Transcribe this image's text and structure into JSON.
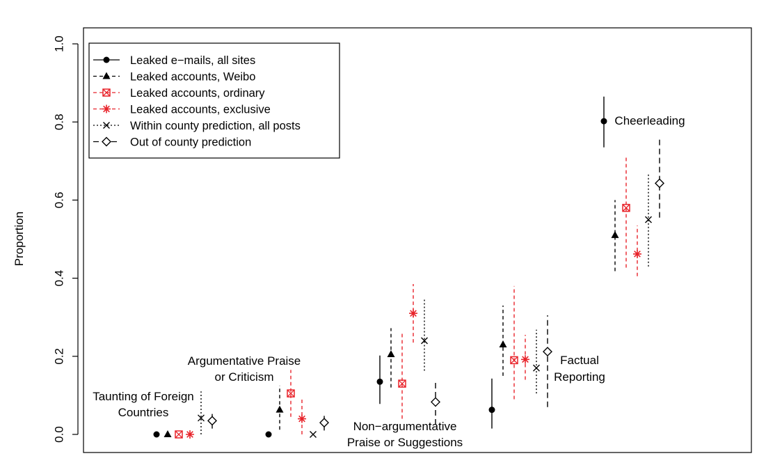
{
  "chart_data": {
    "type": "scatter",
    "ylabel": "Proportion",
    "xlabel": "",
    "ylim": [
      0.0,
      1.0
    ],
    "yticks": [
      "0.0",
      "0.2",
      "0.4",
      "0.6",
      "0.8",
      "1.0"
    ],
    "grid": false,
    "legend_position": "top-left",
    "categories": [
      {
        "id": "taunting",
        "label_lines": [
          "Taunting of Foreign",
          "Countries"
        ]
      },
      {
        "id": "argumentative",
        "label_lines": [
          "Argumentative Praise",
          "or Criticism"
        ]
      },
      {
        "id": "nonargumentative",
        "label_lines": [
          "Non−argumentative",
          "Praise or Suggestions"
        ]
      },
      {
        "id": "factual",
        "label_lines": [
          "Factual",
          "Reporting"
        ]
      },
      {
        "id": "cheerleading",
        "label_lines": [
          "Cheerleading"
        ]
      }
    ],
    "series": [
      {
        "name": "Leaked e−mails, all sites",
        "marker": "circle",
        "color": "#000000",
        "line": "solid",
        "values": [
          0.0,
          0.0,
          0.135,
          0.063,
          0.802
        ],
        "lower": [
          null,
          null,
          0.078,
          0.015,
          0.735
        ],
        "upper": [
          null,
          null,
          0.202,
          0.143,
          0.865
        ]
      },
      {
        "name": "Leaked accounts, Weibo",
        "marker": "triangle",
        "color": "#000000",
        "line": "dashed",
        "values": [
          0.0,
          0.063,
          0.205,
          0.23,
          0.51
        ],
        "lower": [
          null,
          0.012,
          0.12,
          0.15,
          0.418
        ],
        "upper": [
          null,
          0.125,
          0.272,
          0.33,
          0.6
        ]
      },
      {
        "name": "Leaked accounts, ordinary",
        "marker": "boxed-x",
        "color": "#e8232a",
        "line": "dashed",
        "values": [
          0.0,
          0.105,
          0.13,
          0.19,
          0.58
        ],
        "lower": [
          null,
          0.045,
          0.04,
          0.09,
          0.427
        ],
        "upper": [
          null,
          0.165,
          0.262,
          0.38,
          0.715
        ]
      },
      {
        "name": "Leaked accounts, exclusive",
        "marker": "asterisk",
        "color": "#e8232a",
        "line": "dashed",
        "values": [
          0.0,
          0.04,
          0.31,
          0.192,
          0.462
        ],
        "lower": [
          null,
          0.0,
          0.235,
          0.14,
          0.405
        ],
        "upper": [
          null,
          0.09,
          0.385,
          0.255,
          0.535
        ]
      },
      {
        "name": "Within county prediction, all posts",
        "marker": "x",
        "color": "#000000",
        "line": "dotted",
        "values": [
          0.042,
          0.0,
          0.24,
          0.17,
          0.55
        ],
        "lower": [
          0.0,
          null,
          0.163,
          0.105,
          0.43
        ],
        "upper": [
          0.11,
          null,
          0.345,
          0.268,
          0.67
        ]
      },
      {
        "name": "Out of county prediction",
        "marker": "diamond",
        "color": "#000000",
        "line": "longdash",
        "values": [
          0.035,
          0.03,
          0.083,
          0.212,
          0.643
        ],
        "lower": [
          0.015,
          0.01,
          0.025,
          0.07,
          0.555
        ],
        "upper": [
          0.055,
          0.055,
          0.135,
          0.305,
          0.76
        ]
      }
    ]
  }
}
